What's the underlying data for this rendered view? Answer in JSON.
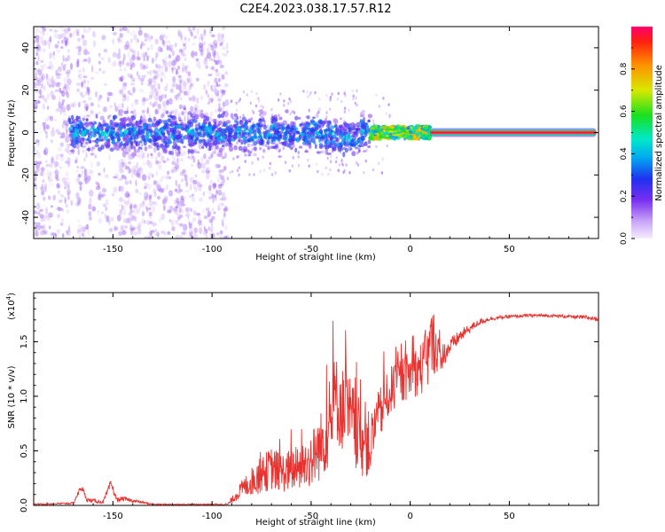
{
  "title": "C2E4.2023.038.17.57.R12",
  "chart_data": [
    {
      "type": "heatmap",
      "xlabel": "Height of straight line (km)",
      "ylabel": "Frequency (Hz)",
      "xlim": [
        -190,
        95
      ],
      "ylim": [
        -50,
        50
      ],
      "xticks": [
        -150,
        -100,
        -50,
        0,
        50
      ],
      "yticks": [
        -40,
        -20,
        0,
        20,
        40
      ],
      "colorbar": {
        "label": "Normalized spectral amplitude",
        "range": [
          0,
          1
        ],
        "ticks": [
          0.0,
          0.2,
          0.4,
          0.6,
          0.8
        ],
        "tick_labels": [
          "0.0",
          "0.2",
          "0.4",
          "0.6",
          "0.8"
        ]
      },
      "features": [
        {
          "name": "scattered noise",
          "x_range": [
            -190,
            -92
          ],
          "y_range": [
            -50,
            50
          ],
          "amplitude": 0.15
        },
        {
          "name": "broad band",
          "x_range": [
            -172,
            -20
          ],
          "y_center": 0,
          "half_width": 6,
          "amplitude": 0.35
        },
        {
          "name": "converging band",
          "x_range": [
            -20,
            10
          ],
          "y_center": 0,
          "half_width": 3,
          "amplitude": 0.75
        },
        {
          "name": "steady carrier",
          "x_range": [
            10,
            94
          ],
          "y_center": 0,
          "half_width": 1,
          "amplitude": 1.0
        }
      ]
    },
    {
      "type": "line",
      "xlabel": "Height of straight line (km)",
      "ylabel": "SNR (10 * v/v)",
      "exponent_label": "(x10",
      "exponent_power": "4",
      "exponent_close": ")",
      "xlim": [
        -190,
        95
      ],
      "ylim": [
        0,
        1.95
      ],
      "xticks": [
        -150,
        -100,
        -50,
        0,
        50
      ],
      "yticks": [
        0.0,
        0.5,
        1.0,
        1.5
      ],
      "ytick_labels": [
        "0.0",
        "0.5",
        "1.0",
        "1.5"
      ],
      "line_color": "#e8322f",
      "series": [
        {
          "name": "SNR",
          "x": [
            -190,
            -170,
            -166,
            -163,
            -155,
            -151,
            -148,
            -145,
            -130,
            -100,
            -92,
            -85,
            -80,
            -75,
            -70,
            -65,
            -60,
            -55,
            -50,
            -45,
            -40,
            -38,
            -35,
            -30,
            -25,
            -20,
            -18,
            -15,
            -10,
            -5,
            0,
            5,
            8,
            10,
            12,
            15,
            20,
            25,
            30,
            35,
            40,
            50,
            60,
            70,
            80,
            90,
            94
          ],
          "y": [
            0.01,
            0.02,
            0.17,
            0.05,
            0.03,
            0.2,
            0.05,
            0.06,
            0.01,
            0.01,
            0.01,
            0.15,
            0.22,
            0.28,
            0.34,
            0.3,
            0.32,
            0.35,
            0.42,
            0.55,
            0.75,
            1.0,
            0.9,
            0.8,
            0.6,
            0.55,
            0.7,
            0.85,
            1.05,
            1.15,
            1.2,
            1.25,
            1.3,
            1.45,
            1.5,
            1.35,
            1.45,
            1.55,
            1.62,
            1.68,
            1.71,
            1.73,
            1.74,
            1.74,
            1.73,
            1.72,
            1.71
          ],
          "noise": [
            0.005,
            0.01,
            0.03,
            0.02,
            0.015,
            0.04,
            0.02,
            0.02,
            0.005,
            0.005,
            0.01,
            0.08,
            0.13,
            0.17,
            0.2,
            0.18,
            0.2,
            0.22,
            0.26,
            0.32,
            0.38,
            0.4,
            0.4,
            0.38,
            0.34,
            0.3,
            0.26,
            0.24,
            0.22,
            0.22,
            0.22,
            0.24,
            0.3,
            0.32,
            0.3,
            0.14,
            0.08,
            0.06,
            0.04,
            0.03,
            0.02,
            0.015,
            0.015,
            0.015,
            0.015,
            0.02,
            0.02
          ]
        }
      ]
    }
  ]
}
